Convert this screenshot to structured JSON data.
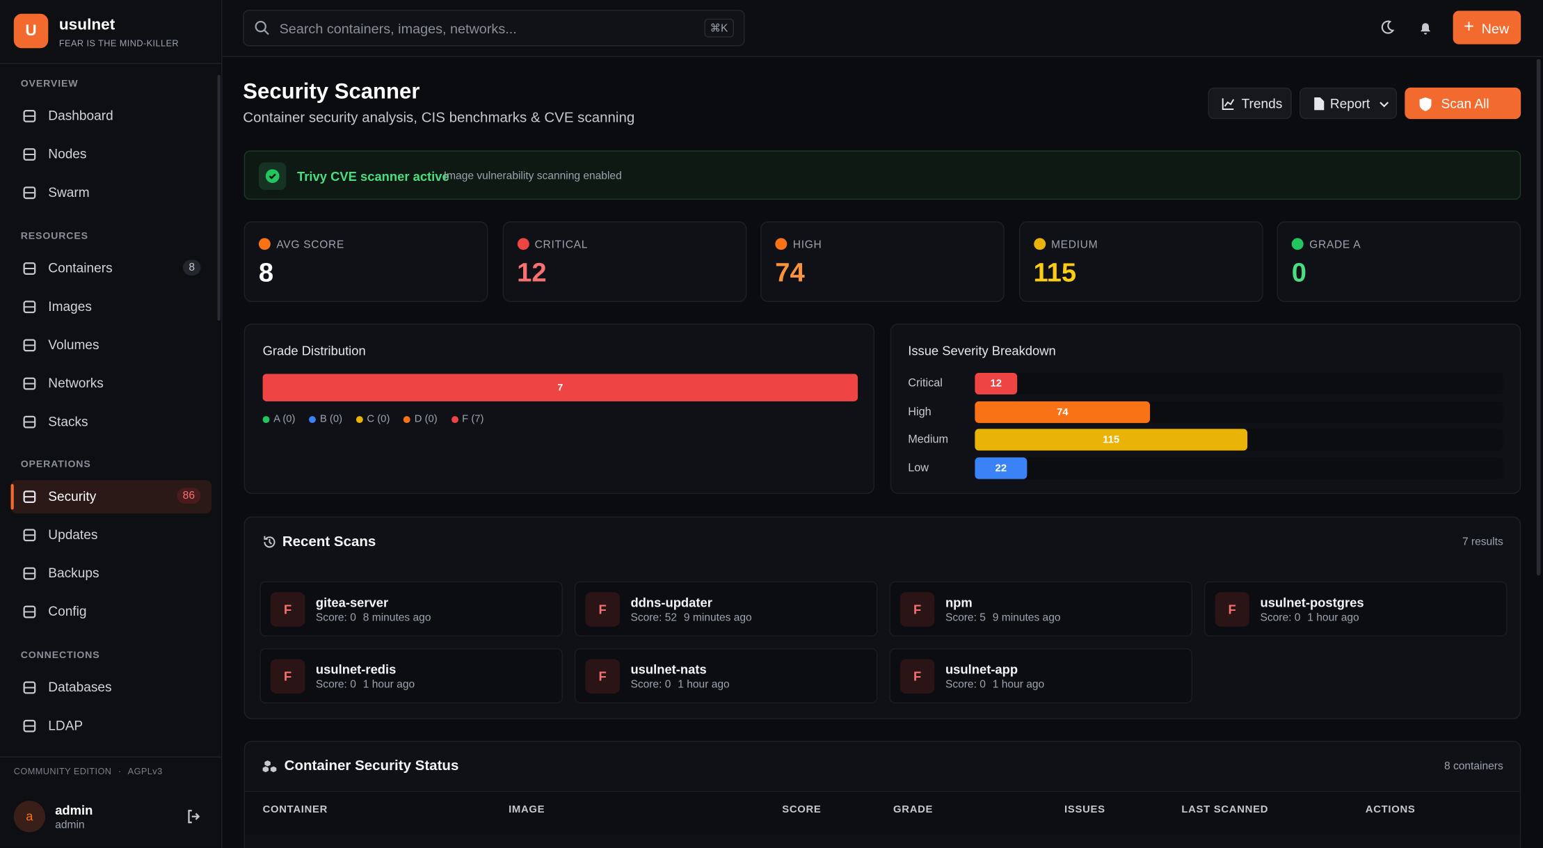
{
  "sidebar": {
    "logo": "U",
    "brand": "usulnet",
    "tagline": "FEAR IS THE MIND-KILLER",
    "sections": [
      {
        "title": "OVERVIEW",
        "items": [
          {
            "label": "Dashboard"
          },
          {
            "label": "Nodes"
          },
          {
            "label": "Swarm"
          }
        ]
      },
      {
        "title": "RESOURCES",
        "items": [
          {
            "label": "Containers",
            "badge": 8
          },
          {
            "label": "Images"
          },
          {
            "label": "Volumes"
          },
          {
            "label": "Networks"
          },
          {
            "label": "Stacks"
          }
        ]
      },
      {
        "title": "OPERATIONS",
        "items": [
          {
            "label": "Security",
            "badge": 86,
            "active": true
          },
          {
            "label": "Updates"
          },
          {
            "label": "Backups"
          },
          {
            "label": "Config"
          }
        ]
      },
      {
        "title": "CONNECTIONS",
        "items": [
          {
            "label": "Databases"
          },
          {
            "label": "LDAP"
          }
        ]
      }
    ],
    "footer": {
      "edition": "COMMUNITY EDITION",
      "separator": "·",
      "license": "AGPLv3",
      "avatar": "a",
      "user": "admin",
      "role": "admin"
    }
  },
  "topbar": {
    "search_placeholder": "Search containers, images, networks...",
    "shortcut": "⌘K",
    "new_button": "New"
  },
  "header": {
    "title": "Security Scanner",
    "subtitle": "Container security analysis, CIS benchmarks & CVE scanning",
    "trends": "Trends",
    "report": "Report",
    "scan_all": "Scan All"
  },
  "alert": {
    "title": "Trivy CVE scanner active",
    "text": "Image vulnerability scanning enabled"
  },
  "stats": [
    {
      "label": "AVG SCORE",
      "value": 8,
      "color": "#ffffff",
      "icon_color": "#f97316"
    },
    {
      "label": "CRITICAL",
      "value": 12,
      "color": "#f87171",
      "icon_color": "#ef4444"
    },
    {
      "label": "HIGH",
      "value": 74,
      "color": "#fb923c",
      "icon_color": "#f97316"
    },
    {
      "label": "MEDIUM",
      "value": 115,
      "color": "#facc15",
      "icon_color": "#eab308"
    },
    {
      "label": "GRADE A",
      "value": 0,
      "color": "#4ade80",
      "icon_color": "#22c55e"
    }
  ],
  "grade_distribution": {
    "title": "Grade Distribution",
    "grades": [
      {
        "label": "A (0)",
        "count": 0,
        "color": "#22c55e"
      },
      {
        "label": "B (0)",
        "count": 0,
        "color": "#3b82f6"
      },
      {
        "label": "C (0)",
        "count": 0,
        "color": "#eab308"
      },
      {
        "label": "D (0)",
        "count": 0,
        "color": "#f97316"
      },
      {
        "label": "F (7)",
        "count": 7,
        "color": "#ef4444"
      }
    ]
  },
  "severity": {
    "title": "Issue Severity Breakdown",
    "rows": [
      {
        "label": "Critical",
        "value": 12,
        "color": "#ef4444"
      },
      {
        "label": "High",
        "value": 74,
        "color": "#f97316"
      },
      {
        "label": "Medium",
        "value": 115,
        "color": "#eab308"
      },
      {
        "label": "Low",
        "value": 22,
        "color": "#3b82f6"
      }
    ]
  },
  "recent_scans": {
    "title": "Recent Scans",
    "count": "7 results",
    "items": [
      {
        "grade": "F",
        "name": "gitea-server",
        "score": "Score: 0",
        "time": "8 minutes ago"
      },
      {
        "grade": "F",
        "name": "ddns-updater",
        "score": "Score: 52",
        "time": "9 minutes ago"
      },
      {
        "grade": "F",
        "name": "npm",
        "score": "Score: 5",
        "time": "9 minutes ago"
      },
      {
        "grade": "F",
        "name": "usulnet-postgres",
        "score": "Score: 0",
        "time": "1 hour ago"
      },
      {
        "grade": "F",
        "name": "usulnet-redis",
        "score": "Score: 0",
        "time": "1 hour ago"
      },
      {
        "grade": "F",
        "name": "usulnet-nats",
        "score": "Score: 0",
        "time": "1 hour ago"
      },
      {
        "grade": "F",
        "name": "usulnet-app",
        "score": "Score: 0",
        "time": "1 hour ago"
      }
    ]
  },
  "container_status": {
    "title": "Container Security Status",
    "count": "8 containers",
    "columns": [
      "CONTAINER",
      "IMAGE",
      "SCORE",
      "GRADE",
      "ISSUES",
      "LAST SCANNED",
      "ACTIONS"
    ]
  }
}
